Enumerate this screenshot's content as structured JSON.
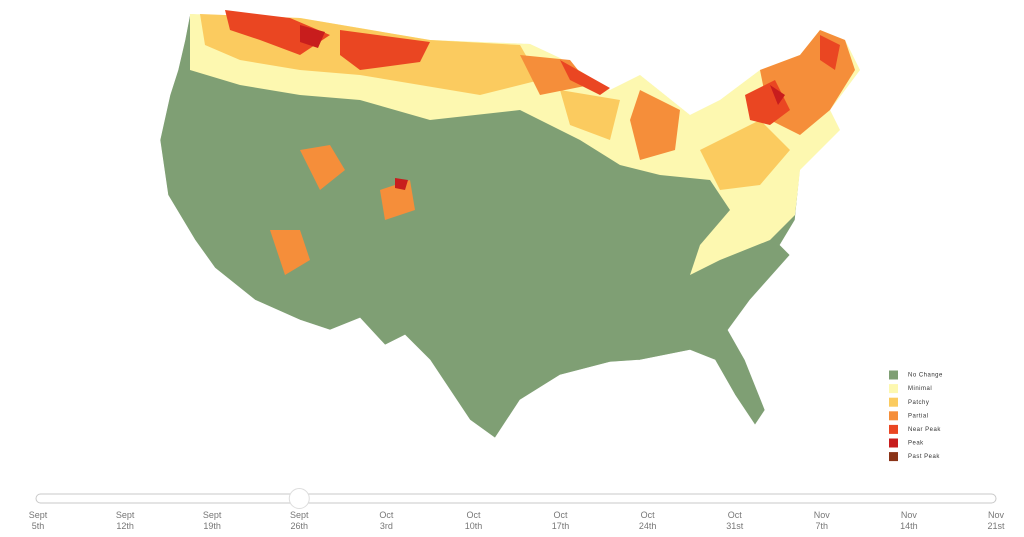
{
  "legend": {
    "items": [
      {
        "label": "No Change",
        "color": "#7f9f74"
      },
      {
        "label": "Minimal",
        "color": "#fdf8b0"
      },
      {
        "label": "Patchy",
        "color": "#fbcb5f"
      },
      {
        "label": "Partial",
        "color": "#f58e3a"
      },
      {
        "label": "Near Peak",
        "color": "#ea4622"
      },
      {
        "label": "Peak",
        "color": "#c81d1d"
      },
      {
        "label": "Past Peak",
        "color": "#8a3317"
      }
    ]
  },
  "slider": {
    "selected_index": 3,
    "ticks": [
      [
        "Sept",
        "5th"
      ],
      [
        "Sept",
        "12th"
      ],
      [
        "Sept",
        "19th"
      ],
      [
        "Sept",
        "26th"
      ],
      [
        "Oct",
        "3rd"
      ],
      [
        "Oct",
        "10th"
      ],
      [
        "Oct",
        "17th"
      ],
      [
        "Oct",
        "24th"
      ],
      [
        "Oct",
        "31st"
      ],
      [
        "Nov",
        "7th"
      ],
      [
        "Nov",
        "14th"
      ],
      [
        "Nov",
        "21st"
      ]
    ]
  }
}
